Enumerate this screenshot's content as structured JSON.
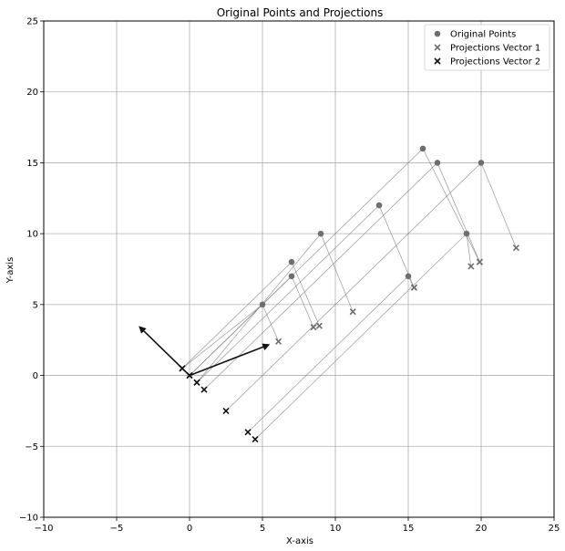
{
  "chart_data": {
    "type": "scatter",
    "title": "Original Points and Projections",
    "xlabel": "X-axis",
    "ylabel": "Y-axis",
    "xlim": [
      -10,
      25
    ],
    "ylim": [
      -10,
      25
    ],
    "xticks": [
      -10,
      -5,
      0,
      5,
      10,
      15,
      20,
      25
    ],
    "yticks": [
      -10,
      -5,
      0,
      5,
      10,
      15,
      20,
      25
    ],
    "grid": true,
    "legend_position": "top-right",
    "series": [
      {
        "name": "Original Points",
        "marker": "circle",
        "color": "#6e6e6e",
        "points": [
          [
            5,
            5
          ],
          [
            7,
            7
          ],
          [
            7,
            8
          ],
          [
            9,
            10
          ],
          [
            13,
            12
          ],
          [
            15,
            7
          ],
          [
            16,
            16
          ],
          [
            17,
            15
          ],
          [
            19,
            10
          ],
          [
            20,
            15
          ]
        ]
      },
      {
        "name": "Projections Vector 1",
        "marker": "x",
        "color": "#6e6e6e",
        "points": [
          [
            6.1,
            2.4
          ],
          [
            8.5,
            3.4
          ],
          [
            8.9,
            3.5
          ],
          [
            11.2,
            4.5
          ],
          [
            15.4,
            6.2
          ],
          [
            15.4,
            6.2
          ],
          [
            19.9,
            8.0
          ],
          [
            19.9,
            8.0
          ],
          [
            19.3,
            7.7
          ],
          [
            22.4,
            9.0
          ]
        ]
      },
      {
        "name": "Projections Vector 2",
        "marker": "x",
        "color": "#111111",
        "points": [
          [
            -0.5,
            0.5
          ],
          [
            0.0,
            0.0
          ],
          [
            -0.5,
            0.5
          ],
          [
            0.5,
            -0.5
          ],
          [
            0.5,
            -0.5
          ],
          [
            4.0,
            -4.0
          ],
          [
            0.0,
            0.0
          ],
          [
            1.0,
            -1.0
          ],
          [
            4.5,
            -4.5
          ],
          [
            2.5,
            -2.5
          ]
        ]
      }
    ],
    "vectors": [
      {
        "from": [
          0,
          0
        ],
        "to": [
          5.4,
          2.15
        ],
        "color": "#111111"
      },
      {
        "from": [
          0,
          0
        ],
        "to": [
          -3.4,
          3.4
        ],
        "color": "#111111"
      }
    ]
  }
}
